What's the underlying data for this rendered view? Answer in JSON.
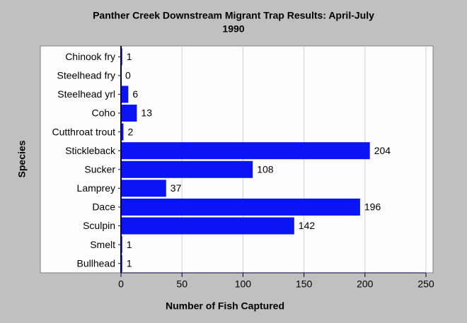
{
  "chart_data": {
    "type": "hbar",
    "title": [
      "Panther Creek Downstream Migrant Trap Results: April-July",
      "1990"
    ],
    "x_label": "Number of Fish Captured",
    "y_label": "Species",
    "categories": [
      "Chinook fry",
      "Steelhead fry",
      "Steelhead yrl",
      "Coho",
      "Cutthroat trout",
      "Stickleback",
      "Sucker",
      "Lamprey",
      "Dace",
      "Sculpin",
      "Smelt",
      "Bullhead"
    ],
    "values": [
      1,
      0,
      6,
      13,
      2,
      204,
      108,
      37,
      196,
      142,
      1,
      1
    ],
    "color": "#0a14f5",
    "xlim": [
      0,
      250
    ],
    "xticks": [
      0,
      50,
      100,
      150,
      200,
      250
    ],
    "grid": true
  }
}
